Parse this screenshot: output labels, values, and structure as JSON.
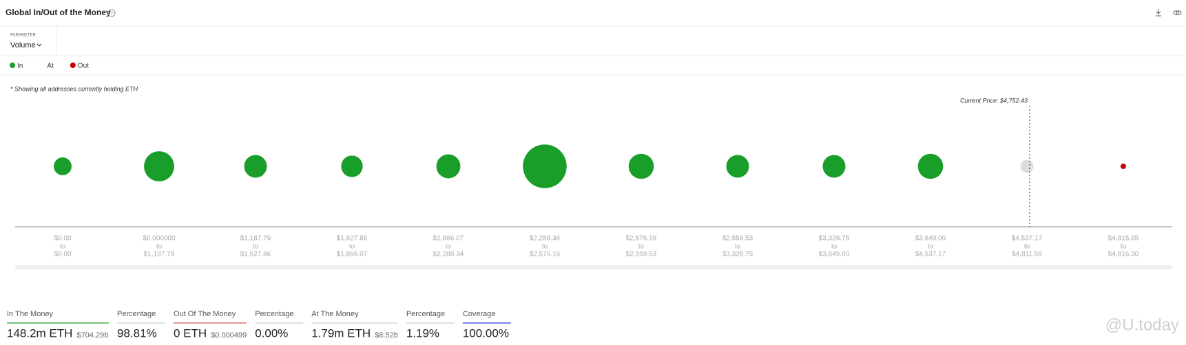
{
  "header": {
    "title": "Global In/Out of the Money"
  },
  "parameter": {
    "label": "PARAMETER",
    "value": "Volume"
  },
  "chart_data": {
    "type": "bubble",
    "note": "* Showing all addresses currently holding ETH",
    "annotation": "Current Price: $4,752.43",
    "range_joiner": "to",
    "categories": [
      {
        "from": "$0.00",
        "to": "$0.00"
      },
      {
        "from": "$0.000000",
        "to": "$1,187.79"
      },
      {
        "from": "$1,187.79",
        "to": "$1,627.86"
      },
      {
        "from": "$1,627.86",
        "to": "$1,866.07"
      },
      {
        "from": "$1,866.07",
        "to": "$2,288.34"
      },
      {
        "from": "$2,288.34",
        "to": "$2,576.16"
      },
      {
        "from": "$2,576.16",
        "to": "$2,959.53"
      },
      {
        "from": "$2,959.53",
        "to": "$3,328.75"
      },
      {
        "from": "$3,328.75",
        "to": "$3,649.00"
      },
      {
        "from": "$3,649.00",
        "to": "$4,537.17"
      },
      {
        "from": "$4,537.17",
        "to": "$4,811.59"
      },
      {
        "from": "$4,815.95",
        "to": "$4,816.30"
      }
    ],
    "series": [
      {
        "name": "In",
        "color": "#1a9e2a",
        "values": [
          5.0,
          20.1,
          9.8,
          8.5,
          11.3,
          48.2,
          12.8,
          9.8,
          9.8,
          12.8,
          null,
          null
        ]
      },
      {
        "name": "At",
        "color": "#dddddd",
        "values": [
          null,
          null,
          null,
          null,
          null,
          null,
          null,
          null,
          null,
          null,
          1.79,
          null
        ]
      },
      {
        "name": "Out",
        "color": "#cc0000",
        "values": [
          null,
          null,
          null,
          null,
          null,
          null,
          null,
          null,
          null,
          null,
          null,
          0
        ]
      }
    ]
  },
  "summary": [
    {
      "label": "In The Money",
      "value": "148.2m ETH",
      "sub": "$704.29b",
      "color": "#1a9e2a"
    },
    {
      "label": "Percentage",
      "value": "98.81%",
      "color": "#cccccc"
    },
    {
      "label": "Out Of The Money",
      "value": "0 ETH",
      "sub": "$0.000499",
      "color": "#d9534f"
    },
    {
      "label": "Percentage",
      "value": "0.00%",
      "color": "#cccccc"
    },
    {
      "label": "At The Money",
      "value": "1.79m ETH",
      "sub": "$8.52b",
      "color": "#cccccc"
    },
    {
      "label": "Percentage",
      "value": "1.19%",
      "color": "#cccccc"
    },
    {
      "label": "Coverage",
      "value": "100.00%",
      "color": "#2b3fd6"
    }
  ],
  "watermark": "@U.today"
}
